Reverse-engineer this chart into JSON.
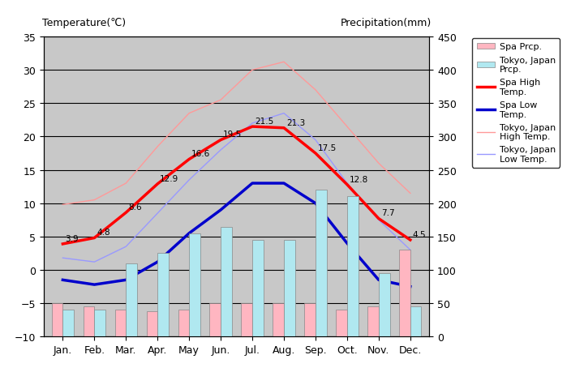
{
  "months": [
    "Jan.",
    "Feb.",
    "Mar.",
    "Apr.",
    "May",
    "Jun.",
    "Jul.",
    "Aug.",
    "Sep.",
    "Oct.",
    "Nov.",
    "Dec."
  ],
  "spa_high_temp": [
    3.9,
    4.8,
    8.6,
    12.9,
    16.6,
    19.5,
    21.5,
    21.3,
    17.5,
    12.8,
    7.7,
    4.5
  ],
  "spa_low_temp": [
    -1.5,
    -2.2,
    -1.5,
    1.2,
    5.5,
    9.0,
    13.0,
    13.0,
    10.0,
    4.0,
    -1.5,
    -2.5
  ],
  "tokyo_high_temp": [
    9.8,
    10.5,
    13.0,
    18.5,
    23.5,
    25.5,
    30.0,
    31.2,
    27.0,
    21.5,
    16.0,
    11.5
  ],
  "tokyo_low_temp": [
    1.8,
    1.2,
    3.5,
    8.5,
    13.5,
    18.0,
    22.0,
    23.5,
    19.5,
    13.0,
    7.5,
    3.0
  ],
  "spa_prcp_mm": [
    50,
    45,
    40,
    38,
    40,
    50,
    50,
    50,
    50,
    40,
    45,
    130
  ],
  "tokyo_prcp_mm": [
    40,
    40,
    110,
    125,
    155,
    165,
    145,
    145,
    220,
    210,
    95,
    45
  ],
  "temp_ylim": [
    -10,
    35
  ],
  "prcp_ylim": [
    0,
    450
  ],
  "spa_high_color": "#ff0000",
  "spa_low_color": "#0000cc",
  "tokyo_high_color": "#ff9999",
  "tokyo_low_color": "#9999ff",
  "spa_prcp_color": "#ffb6c1",
  "tokyo_prcp_color": "#b0e8f0",
  "bg_color": "#c8c8c8",
  "grid_color": "#000000",
  "title_left": "Temperature(℃)",
  "title_right": "Precipitation(mm)",
  "label_fontsize": 9,
  "tick_fontsize": 9,
  "legend_fontsize": 8
}
